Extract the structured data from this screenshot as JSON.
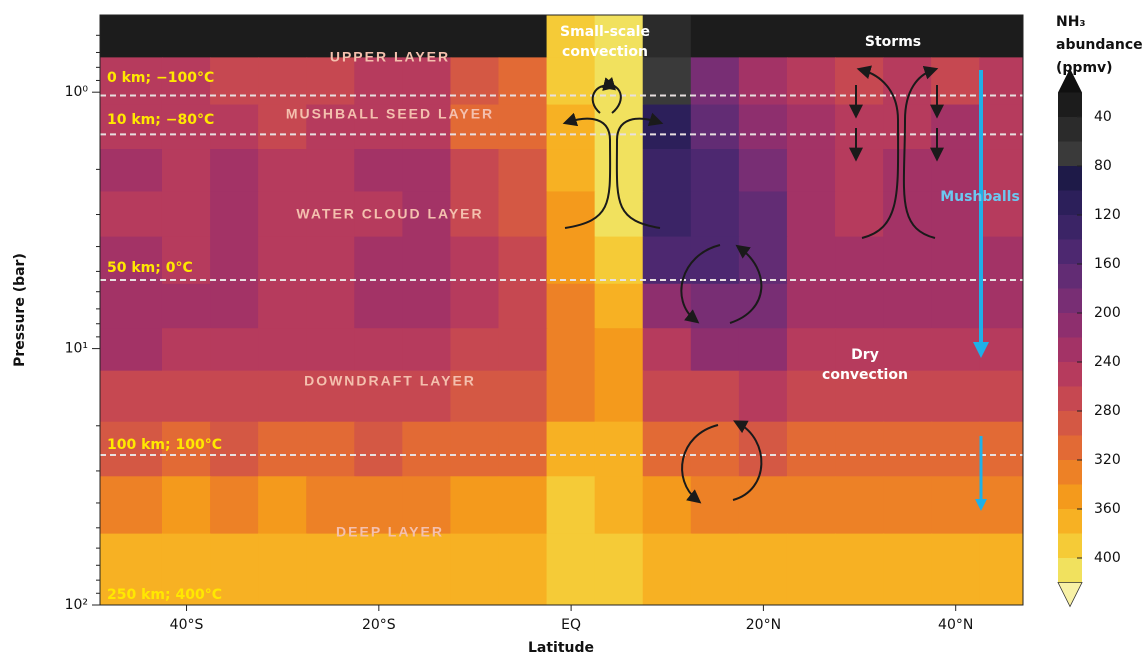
{
  "chart_data": {
    "type": "contour",
    "xlabel": "Latitude",
    "ylabel": "Pressure (bar)",
    "xlim": [
      -49,
      47
    ],
    "xticks": [
      {
        "value": -40,
        "label": "40°S"
      },
      {
        "value": -20,
        "label": "20°S"
      },
      {
        "value": 0,
        "label": "EQ"
      },
      {
        "value": 20,
        "label": "20°N"
      },
      {
        "value": 40,
        "label": "40°N"
      }
    ],
    "ylim": [
      0.5,
      100
    ],
    "y_log": true,
    "y_inverted": true,
    "yticks": [
      {
        "value": 1,
        "label": "10⁰"
      },
      {
        "value": 10,
        "label": "10¹"
      },
      {
        "value": 100,
        "label": "10²"
      }
    ],
    "yminorticks": [
      0.6,
      0.7,
      0.8,
      0.9,
      2,
      3,
      4,
      5,
      6,
      7,
      8,
      9,
      20,
      30,
      40,
      50,
      60,
      70,
      80,
      90
    ],
    "x": [
      -45,
      -40,
      -35,
      -30,
      -25,
      -20,
      -15,
      -10,
      -5,
      0,
      5,
      10,
      15,
      20,
      25,
      30,
      35,
      40,
      45
    ],
    "y": [
      0.6,
      0.9,
      1.4,
      2,
      3,
      4.5,
      7,
      10,
      15,
      25,
      40,
      70
    ],
    "z": [
      [
        30,
        30,
        30,
        30,
        30,
        30,
        30,
        30,
        30,
        380,
        400,
        40,
        30,
        30,
        30,
        30,
        30,
        30,
        30
      ],
      [
        240,
        250,
        260,
        270,
        260,
        250,
        240,
        280,
        300,
        380,
        410,
        60,
        180,
        220,
        240,
        260,
        250,
        260,
        250
      ],
      [
        250,
        250,
        240,
        260,
        250,
        240,
        240,
        300,
        300,
        360,
        400,
        100,
        160,
        200,
        220,
        240,
        240,
        230,
        240
      ],
      [
        230,
        240,
        220,
        250,
        240,
        230,
        220,
        270,
        290,
        360,
        410,
        120,
        140,
        180,
        220,
        240,
        230,
        220,
        240
      ],
      [
        240,
        250,
        230,
        250,
        250,
        240,
        230,
        260,
        280,
        350,
        400,
        130,
        140,
        170,
        220,
        240,
        230,
        230,
        240
      ],
      [
        230,
        240,
        230,
        240,
        240,
        230,
        220,
        250,
        270,
        340,
        390,
        150,
        150,
        170,
        220,
        230,
        220,
        220,
        230
      ],
      [
        220,
        230,
        230,
        240,
        240,
        230,
        230,
        250,
        270,
        330,
        360,
        200,
        180,
        180,
        230,
        230,
        230,
        230,
        230
      ],
      [
        230,
        240,
        250,
        250,
        250,
        240,
        240,
        260,
        270,
        320,
        350,
        240,
        200,
        200,
        240,
        240,
        240,
        240,
        240
      ],
      [
        260,
        270,
        270,
        270,
        270,
        260,
        270,
        280,
        290,
        330,
        350,
        270,
        260,
        250,
        270,
        270,
        260,
        270,
        270
      ],
      [
        290,
        300,
        290,
        300,
        300,
        290,
        300,
        300,
        310,
        360,
        360,
        300,
        310,
        290,
        300,
        300,
        300,
        300,
        300
      ],
      [
        330,
        340,
        330,
        340,
        330,
        330,
        330,
        340,
        350,
        380,
        370,
        340,
        330,
        330,
        330,
        330,
        330,
        330,
        330
      ],
      [
        360,
        360,
        360,
        360,
        360,
        360,
        360,
        360,
        360,
        380,
        380,
        360,
        360,
        360,
        360,
        360,
        360,
        360,
        360
      ]
    ],
    "colorbar": {
      "label": [
        "NH₃",
        "abundance",
        "(ppmv)"
      ],
      "levels": [
        20,
        40,
        60,
        80,
        100,
        120,
        140,
        160,
        180,
        200,
        220,
        240,
        260,
        280,
        300,
        320,
        340,
        360,
        380,
        400,
        420
      ],
      "colors": [
        "#101010",
        "#1c1c1c",
        "#2b2b2b",
        "#3a3a3a",
        "#1e1a48",
        "#2c1f5a",
        "#3b2466",
        "#4d2870",
        "#622c74",
        "#782e74",
        "#8e2f6e",
        "#a33366",
        "#b63b5d",
        "#c64851",
        "#d45844",
        "#e26a35",
        "#ed8126",
        "#f49a1c",
        "#f7b123",
        "#f5cb37",
        "#f1e15e",
        "#f8f1a6"
      ],
      "ticks": [
        40,
        80,
        120,
        160,
        200,
        240,
        280,
        320,
        360,
        400
      ]
    },
    "altitude_levels": [
      {
        "label": "0 km; −100°C",
        "pressure": 1.03
      },
      {
        "label": "10 km; −80°C",
        "pressure": 1.46
      },
      {
        "label": "50 km; 0°C",
        "pressure": 5.4
      },
      {
        "label": "100 km; 100°C",
        "pressure": 26
      },
      {
        "label": "250 km; 400°C",
        "pressure": 100
      }
    ],
    "layer_labels": [
      "UPPER LAYER",
      "MUSHBALL SEED LAYER",
      "WATER CLOUD LAYER",
      "DOWNDRAFT LAYER",
      "DEEP LAYER"
    ],
    "annotations": [
      [
        "Small-scale",
        "convection"
      ],
      [
        "Storms"
      ],
      [
        "Mushballs"
      ],
      [
        "Dry",
        "convection"
      ]
    ]
  }
}
